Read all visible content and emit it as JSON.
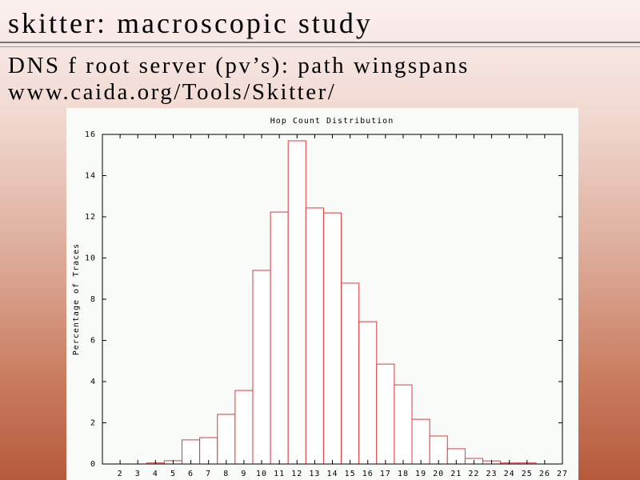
{
  "header": {
    "title": "skitter: macroscopic study",
    "subtitle": "DNS f root server (pv’s):  path wingspans",
    "url": "www.caida.org/Tools/Skitter/"
  },
  "chart_data": {
    "type": "bar",
    "title": "Hop Count Distribution",
    "y_label": "Percentage of Traces",
    "x": [
      2,
      3,
      4,
      5,
      6,
      7,
      8,
      9,
      10,
      11,
      12,
      13,
      14,
      15,
      16,
      17,
      18,
      19,
      20,
      21,
      22,
      23,
      24,
      25,
      26
    ],
    "values": [
      0,
      0,
      0.05,
      0.16,
      1.17,
      1.28,
      2.41,
      3.57,
      9.4,
      12.23,
      15.69,
      12.43,
      12.19,
      8.78,
      6.91,
      4.85,
      3.84,
      2.17,
      1.36,
      0.74,
      0.27,
      0.15,
      0.05,
      0.05,
      0
    ],
    "color": "#e03a3a",
    "xlim": [
      1,
      27
    ],
    "ylim": [
      0,
      16
    ],
    "xticks": [
      2,
      3,
      4,
      5,
      6,
      7,
      8,
      9,
      10,
      11,
      12,
      13,
      14,
      15,
      16,
      17,
      18,
      19,
      20,
      21,
      22,
      23,
      24,
      25,
      26,
      27
    ],
    "yticks": [
      0,
      2,
      4,
      6,
      8,
      10,
      12,
      14,
      16
    ]
  }
}
